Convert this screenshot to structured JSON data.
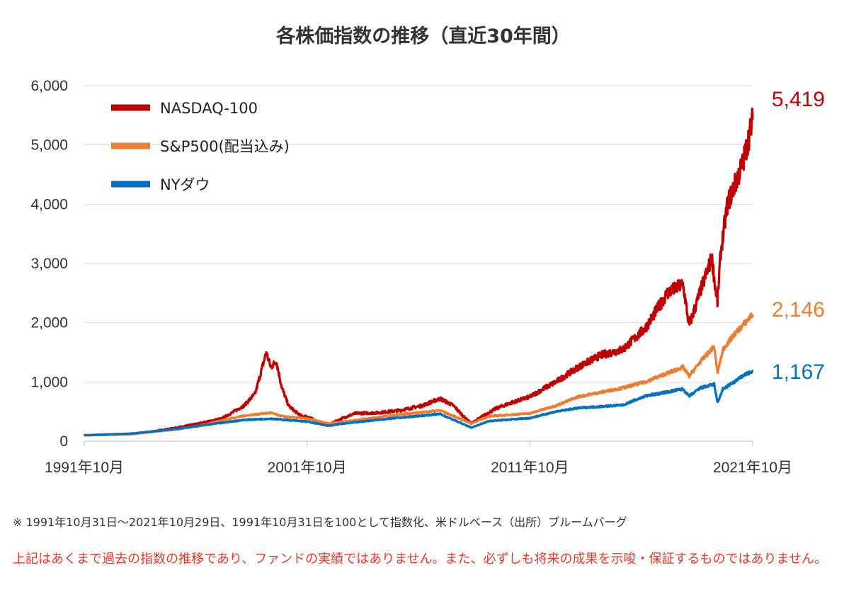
{
  "chart_data": {
    "type": "line",
    "title": "各株価指数の推移（直近30年間）",
    "xlabel": "",
    "ylabel": "",
    "ylim": [
      0,
      6000
    ],
    "yticks": [
      0,
      1000,
      2000,
      3000,
      4000,
      5000,
      6000
    ],
    "ytick_labels": [
      "0",
      "1,000",
      "2,000",
      "3,000",
      "4,000",
      "5,000",
      "6,000"
    ],
    "xlim": [
      1991.83,
      2021.83
    ],
    "xticks": [
      1991.83,
      2001.83,
      2011.83,
      2021.83
    ],
    "xtick_labels": [
      "1991年10月",
      "2001年10月",
      "2011年10月",
      "2021年10月"
    ],
    "grid": "horizontal",
    "legend_position": "top-left",
    "series": [
      {
        "name": "NASDAQ-100",
        "color": "#c00000",
        "end_value_label": "5,419",
        "x": [
          1991.83,
          1993,
          1994,
          1995,
          1996,
          1997,
          1998,
          1999,
          1999.5,
          2000.0,
          2000.2,
          2000.45,
          2000.7,
          2001.0,
          2001.3,
          2001.6,
          2001.83,
          2002.3,
          2002.8,
          2003.5,
          2004,
          2005,
          2006,
          2007,
          2007.8,
          2008.4,
          2008.9,
          2009.2,
          2009.7,
          2010.3,
          2011,
          2011.83,
          2012.5,
          2013,
          2014,
          2015,
          2016,
          2017,
          2018,
          2018.7,
          2018.98,
          2019.5,
          2020.0,
          2020.15,
          2020.25,
          2020.4,
          2020.7,
          2021.0,
          2021.4,
          2021.7,
          2021.83
        ],
        "values": [
          100,
          110,
          125,
          170,
          230,
          300,
          380,
          600,
          800,
          1500,
          1250,
          1350,
          900,
          600,
          500,
          420,
          420,
          330,
          280,
          400,
          470,
          480,
          520,
          600,
          720,
          600,
          400,
          300,
          420,
          550,
          650,
          750,
          900,
          1000,
          1250,
          1450,
          1550,
          1900,
          2500,
          2650,
          1950,
          2550,
          3100,
          2600,
          2350,
          3200,
          4000,
          4300,
          4700,
          5200,
          5419
        ]
      },
      {
        "name": "S&P500(配当込み)",
        "color": "#ed7d31",
        "end_value_label": "2,146",
        "x": [
          1991.83,
          1994,
          1996,
          1997,
          1998,
          1999,
          2000.2,
          2000.7,
          2001.83,
          2002.8,
          2003.5,
          2004.5,
          2006,
          2007.8,
          2009.2,
          2010,
          2011.83,
          2013,
          2014,
          2016,
          2017,
          2018.7,
          2018.98,
          2019.5,
          2020.1,
          2020.25,
          2020.5,
          2021,
          2021.5,
          2021.83
        ],
        "values": [
          100,
          120,
          200,
          260,
          350,
          430,
          480,
          420,
          380,
          300,
          330,
          380,
          450,
          520,
          300,
          420,
          470,
          600,
          750,
          900,
          1000,
          1250,
          1100,
          1350,
          1600,
          1150,
          1550,
          1800,
          2000,
          2146
        ]
      },
      {
        "name": "NYダウ",
        "color": "#0070c0",
        "end_value_label": "1,167",
        "x": [
          1991.83,
          1994,
          1996,
          1997,
          1998,
          1999,
          2000.2,
          2001.83,
          2002.8,
          2003.5,
          2005,
          2007.8,
          2009.2,
          2010,
          2011.83,
          2013,
          2014,
          2016,
          2017,
          2018.7,
          2018.98,
          2019.5,
          2020.1,
          2020.25,
          2020.5,
          2021,
          2021.5,
          2021.83
        ],
        "values": [
          100,
          130,
          210,
          260,
          310,
          360,
          380,
          330,
          260,
          300,
          360,
          460,
          230,
          340,
          390,
          500,
          560,
          610,
          760,
          880,
          760,
          900,
          960,
          650,
          880,
          1000,
          1130,
          1167
        ]
      }
    ]
  },
  "footnote": "※ 1991年10月31日～2021年10月29日、1991年10月31日を100として指数化、米ドルベース（出所）ブルームバーグ",
  "disclaimer": "上記はあくまで過去の指数の推移であり、ファンドの実績ではありません。また、必ずしも将来の成果を示唆・保証するものではありません。"
}
